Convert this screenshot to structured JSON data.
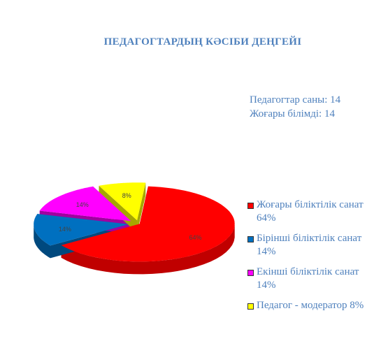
{
  "chart_data": {
    "type": "pie",
    "title": "ПЕДАГОГТАРДЫҢ  КӘСІБИ  ДЕҢГЕЙІ",
    "info": [
      "Педагогтар саны: 14",
      "Жоғары білімді: 14"
    ],
    "legend_position": "right",
    "slices": [
      {
        "legend": "Жоғары біліктілік санат  64%",
        "value": 64,
        "label": "64%",
        "color": "#ff0000",
        "side": "#c00000"
      },
      {
        "legend": "Бірінші біліктілік санат  14%",
        "value": 14,
        "label": "14%",
        "color": "#0070c0",
        "side": "#00497e"
      },
      {
        "legend": "Екінші біліктілік санат 14%",
        "value": 14,
        "label": "14%",
        "color": "#ff00ff",
        "side": "#a000a0"
      },
      {
        "legend": "Педагог - модератор 8%",
        "value": 8,
        "label": "8%",
        "color": "#ffff00",
        "side": "#a6a600"
      }
    ]
  }
}
